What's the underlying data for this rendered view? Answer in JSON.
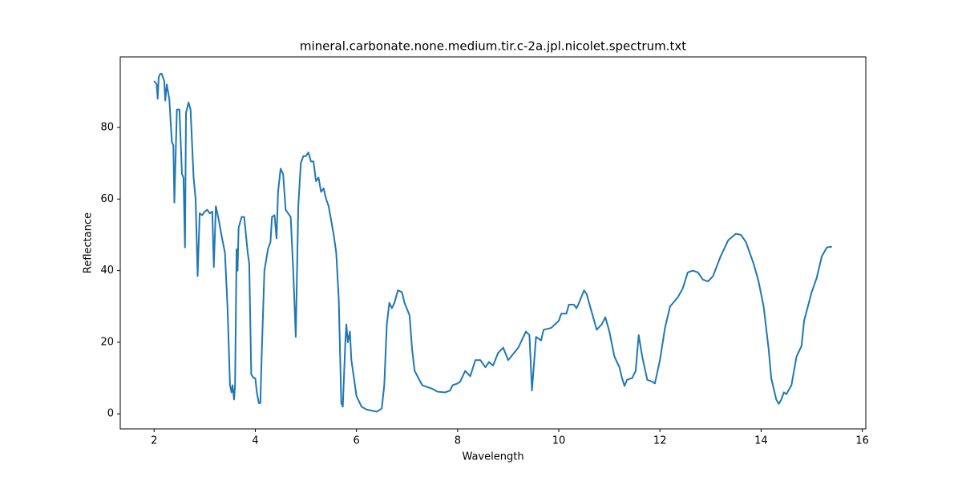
{
  "chart_data": {
    "type": "line",
    "title": "mineral.carbonate.none.medium.tir.c-2a.jpl.nicolet.spectrum.txt",
    "xlabel": "Wavelength",
    "ylabel": "Reflectance",
    "xlim": [
      1.33,
      16.07
    ],
    "ylim": [
      -4.2,
      99.7
    ],
    "xticks": [
      2,
      4,
      6,
      8,
      10,
      12,
      14,
      16
    ],
    "yticks": [
      0,
      20,
      40,
      60,
      80
    ],
    "series": [
      {
        "color": "#1f77b4",
        "x": [
          2.0,
          2.05,
          2.07,
          2.09,
          2.12,
          2.15,
          2.2,
          2.22,
          2.25,
          2.3,
          2.35,
          2.38,
          2.4,
          2.45,
          2.5,
          2.55,
          2.58,
          2.61,
          2.63,
          2.68,
          2.72,
          2.78,
          2.82,
          2.86,
          2.9,
          2.95,
          3.0,
          3.05,
          3.1,
          3.15,
          3.18,
          3.22,
          3.28,
          3.33,
          3.4,
          3.45,
          3.5,
          3.53,
          3.55,
          3.58,
          3.6,
          3.63,
          3.65,
          3.67,
          3.73,
          3.78,
          3.85,
          3.88,
          3.92,
          3.97,
          4.0,
          4.03,
          4.07,
          4.1,
          4.13,
          4.18,
          4.25,
          4.3,
          4.33,
          4.38,
          4.42,
          4.45,
          4.5,
          4.55,
          4.6,
          4.65,
          4.7,
          4.75,
          4.8,
          4.85,
          4.9,
          4.95,
          5.0,
          5.05,
          5.1,
          5.15,
          5.2,
          5.25,
          5.3,
          5.35,
          5.4,
          5.45,
          5.55,
          5.6,
          5.65,
          5.7,
          5.73,
          5.78,
          5.8,
          5.83,
          5.87,
          5.9,
          6.0,
          6.1,
          6.2,
          6.4,
          6.5,
          6.55,
          6.6,
          6.65,
          6.7,
          6.75,
          6.82,
          6.9,
          6.95,
          7.05,
          7.1,
          7.15,
          7.3,
          7.5,
          7.6,
          7.75,
          7.85,
          7.9,
          8.0,
          8.05,
          8.15,
          8.25,
          8.35,
          8.45,
          8.55,
          8.62,
          8.7,
          8.8,
          8.9,
          9.0,
          9.2,
          9.35,
          9.42,
          9.47,
          9.55,
          9.65,
          9.7,
          9.85,
          10.0,
          10.05,
          10.15,
          10.2,
          10.3,
          10.35,
          10.4,
          10.5,
          10.55,
          10.65,
          10.75,
          10.85,
          10.92,
          11.0,
          11.1,
          11.2,
          11.25,
          11.3,
          11.35,
          11.45,
          11.52,
          11.58,
          11.65,
          11.75,
          11.85,
          11.9,
          12.0,
          12.1,
          12.2,
          12.35,
          12.45,
          12.55,
          12.65,
          12.75,
          12.85,
          12.95,
          13.05,
          13.2,
          13.35,
          13.5,
          13.6,
          13.7,
          13.85,
          13.95,
          14.05,
          14.15,
          14.2,
          14.3,
          14.35,
          14.4,
          14.45,
          14.5,
          14.6,
          14.7,
          14.8,
          14.85,
          15.0,
          15.1,
          15.2,
          15.3,
          15.4
        ],
        "values": [
          93,
          92,
          88,
          94,
          95,
          95,
          93,
          87.5,
          92,
          88,
          76,
          75,
          59,
          85,
          85,
          67,
          66,
          46.5,
          84,
          87,
          85,
          66,
          60,
          38.5,
          56,
          55.5,
          56.5,
          57,
          56,
          56.5,
          41,
          58,
          54,
          50,
          45,
          30,
          8,
          6,
          8,
          4,
          8,
          46,
          40,
          52,
          55,
          55,
          45,
          42,
          11,
          10,
          10,
          6,
          3,
          3,
          18,
          40,
          46,
          48,
          55,
          55.5,
          49,
          62,
          68.5,
          67,
          57,
          56,
          55,
          40,
          21.5,
          58,
          70,
          72,
          72,
          73,
          70.5,
          70.5,
          65,
          66,
          62,
          63,
          60,
          58,
          50,
          45,
          32,
          3,
          2,
          20,
          25,
          20,
          23,
          15,
          5,
          2,
          1.2,
          0.6,
          1.5,
          8,
          25,
          31,
          29.5,
          31,
          34.5,
          34,
          31,
          27.5,
          18,
          12,
          8,
          7,
          6.2,
          6,
          6.5,
          8,
          8.5,
          9,
          12,
          10.5,
          15,
          15,
          13,
          14.5,
          13.5,
          17,
          18.5,
          15,
          18.5,
          23,
          22,
          6.5,
          21.5,
          20.5,
          23.5,
          24,
          26,
          28,
          28,
          30.5,
          30.5,
          29.5,
          31,
          34.5,
          33.5,
          28.5,
          23.5,
          25,
          27,
          23,
          16,
          13,
          10,
          7.8,
          9.5,
          10,
          12,
          22,
          16,
          9.5,
          9,
          8.5,
          15,
          24,
          30,
          32.5,
          35,
          39.5,
          40,
          39.5,
          37.5,
          37,
          38.5,
          44,
          48.5,
          50.3,
          50,
          48,
          42,
          37,
          30,
          18,
          10,
          4,
          2.8,
          4,
          6,
          5.5,
          8,
          16,
          19,
          26,
          34,
          38,
          44,
          46.5,
          46.7
        ]
      }
    ]
  }
}
